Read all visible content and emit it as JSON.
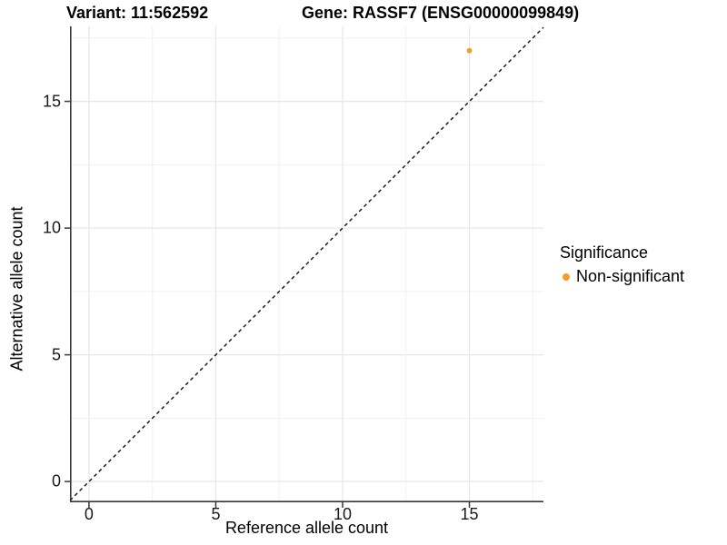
{
  "chart_data": {
    "type": "scatter",
    "titles": {
      "left": "Variant: 11:562592",
      "right": "Gene: RASSF7 (ENSG00000099849)"
    },
    "xlabel": "Reference allele count",
    "ylabel": "Alternative allele count",
    "xlim": [
      -0.75,
      17.92
    ],
    "ylim": [
      -0.82,
      17.96
    ],
    "x_ticks": [
      0,
      5,
      10,
      15
    ],
    "y_ticks": [
      0,
      5,
      10,
      15
    ],
    "grid": {
      "on": true,
      "minor_every": 2.5,
      "major_every": 5,
      "major_color": "#E7E7E7",
      "minor_color": "#F1F1F1"
    },
    "identity_line": {
      "slope": 1,
      "intercept": 0,
      "style": "dashed",
      "color": "#111111"
    },
    "series": [
      {
        "name": "Non-significant",
        "color": "#F99D26",
        "points": [
          {
            "x": 15,
            "y": 17
          }
        ]
      }
    ],
    "legend": {
      "title": "Significance",
      "position": "right",
      "entries": [
        {
          "label": "Non-significant",
          "color": "#F99D26"
        }
      ]
    },
    "axis_color": "#383838",
    "text_color": "#1a1a1a"
  }
}
